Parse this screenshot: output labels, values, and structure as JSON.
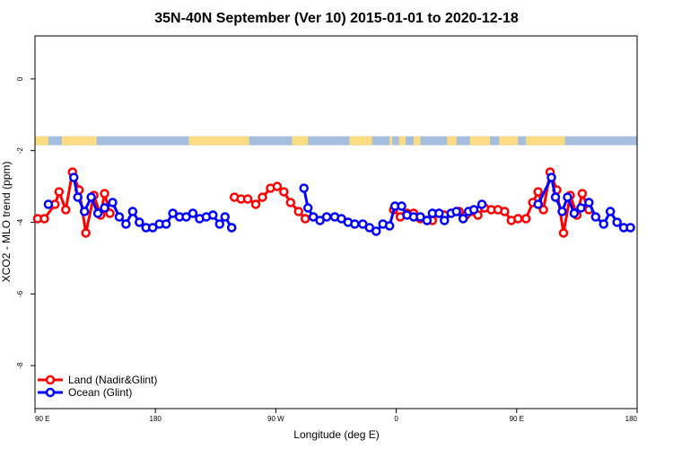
{
  "chart_data": {
    "type": "line",
    "title": "35N-40N September (Ver 10)   2015-01-01 to 2020-12-18",
    "xlabel": "Longitude (deg E)",
    "ylabel": "XCO2 - MLO trend (ppm)",
    "x_ticks": [
      "90 E",
      "180",
      "90 W",
      "0",
      "90 E",
      "180"
    ],
    "y_ticks": [
      "0",
      "-2",
      "-4",
      "-6",
      "-8"
    ],
    "xlim": [
      90,
      540
    ],
    "ylim": [
      -9.2,
      1.2
    ],
    "grid": false,
    "legend_position": "bottom-left",
    "land_ocean_strip": {
      "y_range": [
        -1.85,
        -1.6
      ],
      "land_color": "#FCDC82",
      "ocean_color": "#A6BEDE",
      "land_segments": [
        [
          90,
          100
        ],
        [
          110,
          136
        ],
        [
          205,
          250
        ],
        [
          282,
          294
        ],
        [
          325,
          342
        ],
        [
          355,
          357
        ],
        [
          362,
          367
        ],
        [
          373,
          378
        ],
        [
          398,
          405
        ],
        [
          415,
          430
        ],
        [
          437,
          451
        ],
        [
          457,
          486
        ]
      ]
    },
    "series": [
      {
        "name": "Land (Nadir&Glint)",
        "color": "#FF0000",
        "points": [
          [
            92,
            -3.9
          ],
          [
            97,
            -3.9
          ],
          [
            105,
            -3.5
          ],
          [
            108,
            -3.15
          ],
          [
            113,
            -3.65
          ],
          [
            118,
            -2.6
          ],
          [
            123,
            -3.1
          ],
          [
            128,
            -4.3
          ],
          [
            134,
            -3.25
          ],
          [
            139,
            -3.8
          ],
          [
            142,
            -3.2
          ],
          [
            146,
            -3.75
          ],
          [
            239,
            -3.3
          ],
          [
            244,
            -3.35
          ],
          [
            249,
            -3.35
          ],
          [
            255,
            -3.5
          ],
          [
            260,
            -3.3
          ],
          [
            266,
            -3.05
          ],
          [
            271,
            -3.0
          ],
          [
            276,
            -3.15
          ],
          [
            281,
            -3.45
          ],
          [
            287,
            -3.7
          ],
          [
            292,
            -3.9
          ],
          [
            358,
            -3.65
          ],
          [
            363,
            -3.85
          ],
          [
            368,
            -3.75
          ],
          [
            373,
            -3.75
          ],
          [
            378,
            -3.9
          ],
          [
            383,
            -3.95
          ],
          [
            387,
            -3.95
          ],
          [
            392,
            -3.75
          ],
          [
            396,
            -3.8
          ],
          [
            401,
            -3.75
          ],
          [
            407,
            -3.7
          ],
          [
            412,
            -3.8
          ],
          [
            416,
            -3.7
          ],
          [
            421,
            -3.8
          ],
          [
            426,
            -3.6
          ],
          [
            431,
            -3.65
          ],
          [
            436,
            -3.65
          ],
          [
            441,
            -3.7
          ],
          [
            446,
            -3.95
          ],
          [
            451,
            -3.9
          ],
          [
            457,
            -3.9
          ],
          [
            462,
            -3.45
          ],
          [
            466,
            -3.15
          ],
          [
            470,
            -3.65
          ],
          [
            475,
            -2.6
          ],
          [
            480,
            -3.1
          ],
          [
            485,
            -4.3
          ],
          [
            490,
            -3.25
          ],
          [
            495,
            -3.8
          ],
          [
            499,
            -3.2
          ],
          [
            504,
            -3.65
          ]
        ]
      },
      {
        "name": "Ocean (Glint)",
        "color": "#0000FF",
        "points": [
          [
            100,
            -3.5
          ],
          [
            119,
            -2.75
          ],
          [
            122,
            -3.3
          ],
          [
            127,
            -3.7
          ],
          [
            132,
            -3.3
          ],
          [
            137,
            -3.75
          ],
          [
            142,
            -3.6
          ],
          [
            148,
            -3.45
          ],
          [
            153,
            -3.85
          ],
          [
            158,
            -4.05
          ],
          [
            163,
            -3.7
          ],
          [
            168,
            -4.0
          ],
          [
            173,
            -4.15
          ],
          [
            178,
            -4.15
          ],
          [
            183,
            -4.05
          ],
          [
            188,
            -4.05
          ],
          [
            193,
            -3.75
          ],
          [
            198,
            -3.85
          ],
          [
            203,
            -3.85
          ],
          [
            208,
            -3.75
          ],
          [
            213,
            -3.9
          ],
          [
            218,
            -3.85
          ],
          [
            223,
            -3.8
          ],
          [
            228,
            -4.05
          ],
          [
            232,
            -3.85
          ],
          [
            237,
            -4.15
          ],
          [
            291,
            -3.05
          ],
          [
            294,
            -3.6
          ],
          [
            298,
            -3.85
          ],
          [
            303,
            -3.95
          ],
          [
            308,
            -3.85
          ],
          [
            314,
            -3.85
          ],
          [
            319,
            -3.9
          ],
          [
            324,
            -4.0
          ],
          [
            329,
            -4.05
          ],
          [
            335,
            -4.05
          ],
          [
            340,
            -4.15
          ],
          [
            345,
            -4.25
          ],
          [
            350,
            -4.05
          ],
          [
            355,
            -4.1
          ],
          [
            359,
            -3.55
          ],
          [
            364,
            -3.55
          ],
          [
            368,
            -3.8
          ],
          [
            373,
            -3.85
          ],
          [
            378,
            -3.85
          ],
          [
            383,
            -3.95
          ],
          [
            387,
            -3.75
          ],
          [
            392,
            -3.75
          ],
          [
            396,
            -3.95
          ],
          [
            401,
            -3.75
          ],
          [
            405,
            -3.7
          ],
          [
            410,
            -3.9
          ],
          [
            414,
            -3.7
          ],
          [
            418,
            -3.65
          ],
          [
            424,
            -3.5
          ],
          [
            466,
            -3.5
          ],
          [
            476,
            -2.75
          ],
          [
            479,
            -3.3
          ],
          [
            484,
            -3.7
          ],
          [
            488,
            -3.3
          ],
          [
            493,
            -3.75
          ],
          [
            498,
            -3.6
          ],
          [
            504,
            -3.45
          ],
          [
            509,
            -3.85
          ],
          [
            515,
            -4.05
          ],
          [
            520,
            -3.7
          ],
          [
            525,
            -4.0
          ],
          [
            530,
            -4.15
          ],
          [
            535,
            -4.15
          ]
        ]
      }
    ]
  }
}
